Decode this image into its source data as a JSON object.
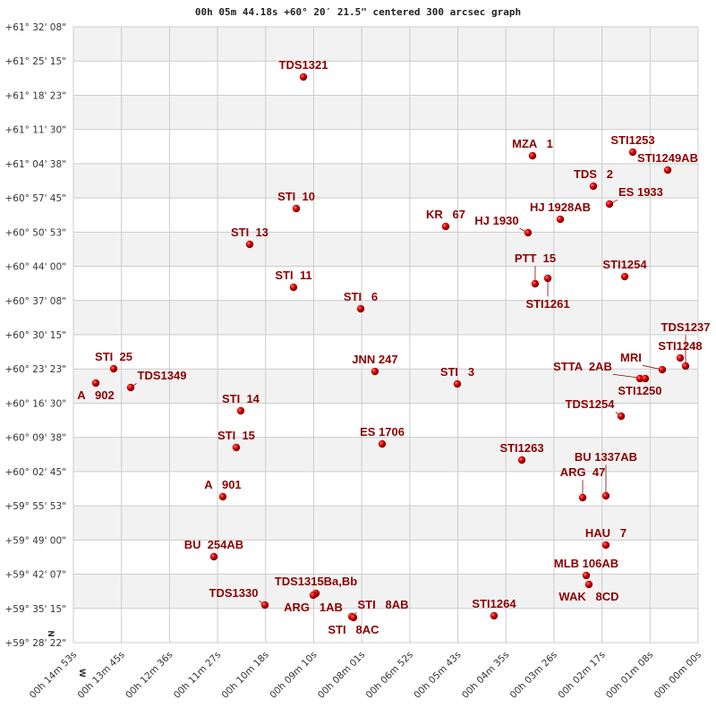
{
  "chart_data": {
    "type": "scatter",
    "title": "00h 05m 44.18s +60° 20′ 21.5\" centered 300 arcsec graph",
    "x_unit": "RA seconds (0h)",
    "y_unit": "Dec degrees",
    "xlim": [
      893,
      0
    ],
    "ylim": [
      59.47278,
      61.53556
    ],
    "grid": true,
    "compass": {
      "north": "N",
      "west": "W"
    },
    "x_ticks": [
      "00h 14m 53s",
      "00h 13m 45s",
      "00h 12m 36s",
      "00h 11m 27s",
      "00h 10m 18s",
      "00h 09m 10s",
      "00h 08m 01s",
      "00h 06m 52s",
      "00h 05m 43s",
      "00h 04m 35s",
      "00h 03m 26s",
      "00h 02m 17s",
      "00h 01m 08s",
      "00h 00m 00s"
    ],
    "y_ticks": [
      "+61° 32' 08\"",
      "+61° 25' 15\"",
      "+61° 18' 23\"",
      "+61° 11' 30\"",
      "+61° 04' 38\"",
      "+60° 57' 45\"",
      "+60° 50' 53\"",
      "+60° 44' 00\"",
      "+60° 37' 08\"",
      "+60° 30' 15\"",
      "+60° 23' 23\"",
      "+60° 16' 30\"",
      "+60° 09' 38\"",
      "+60° 02' 45\"",
      "+59° 55' 53\"",
      "+59° 49' 00\"",
      "+59° 42' 07\"",
      "+59° 35' 15\"",
      "+59° 28' 22\""
    ],
    "colors": {
      "marker": "#cc0000",
      "label": "#8b0000",
      "band": "#f2f2f2",
      "grid": "#cccccc"
    },
    "stars": [
      {
        "name": "TDS1321",
        "ra_s": 564.2,
        "dec": 61.3676
      },
      {
        "name": "MZA   1",
        "ra_s": 236.7,
        "dec": 61.1038
      },
      {
        "name": "STI1253",
        "ra_s": 93.4,
        "dec": 61.1158
      },
      {
        "name": "STI1249AB",
        "ra_s": 43.5,
        "dec": 61.0558
      },
      {
        "name": "TDS   2",
        "ra_s": 149.7,
        "dec": 61.0019
      },
      {
        "name": "ES 1933",
        "ra_s": 126.7,
        "dec": 60.9419
      },
      {
        "name": "HJ 1928AB",
        "ra_s": 197.0,
        "dec": 60.8909
      },
      {
        "name": "HJ 1930",
        "ra_s": 243.1,
        "dec": 60.846
      },
      {
        "name": "KR   67",
        "ra_s": 360.8,
        "dec": 60.8669
      },
      {
        "name": "STI  10",
        "ra_s": 574.4,
        "dec": 60.9269
      },
      {
        "name": "STI  13",
        "ra_s": 641.0,
        "dec": 60.807
      },
      {
        "name": "STI  11",
        "ra_s": 578.3,
        "dec": 60.6631
      },
      {
        "name": "STI   6",
        "ra_s": 482.3,
        "dec": 60.5911
      },
      {
        "name": "PTT  15",
        "ra_s": 232.9,
        "dec": 60.6751
      },
      {
        "name": "STI1261",
        "ra_s": 214.9,
        "dec": 60.6931
      },
      {
        "name": "STI1254",
        "ra_s": 104.9,
        "dec": 60.699
      },
      {
        "name": "STI1248",
        "ra_s": 25.6,
        "dec": 60.4262
      },
      {
        "name": "TDS1237",
        "ra_s": 17.9,
        "dec": 60.3992
      },
      {
        "name": "MRI",
        "ra_s": 51.2,
        "dec": 60.3872
      },
      {
        "name": "STI1250",
        "ra_s": 83.2,
        "dec": 60.3573
      },
      {
        "name": "STTA  2AB",
        "ra_s": 75.5,
        "dec": 60.3573
      },
      {
        "name": "JNN 247",
        "ra_s": 461.9,
        "dec": 60.3812
      },
      {
        "name": "STI   3",
        "ra_s": 344.2,
        "dec": 60.3393
      },
      {
        "name": "STI  25",
        "ra_s": 835.4,
        "dec": 60.3902
      },
      {
        "name": "A   902",
        "ra_s": 861.0,
        "dec": 60.3423
      },
      {
        "name": "TDS1349",
        "ra_s": 811.1,
        "dec": 60.3273
      },
      {
        "name": "STI  14",
        "ra_s": 653.8,
        "dec": 60.2493
      },
      {
        "name": "TDS1254",
        "ra_s": 110.0,
        "dec": 60.2313
      },
      {
        "name": "ES 1706",
        "ra_s": 451.6,
        "dec": 60.1384
      },
      {
        "name": "STI  15",
        "ra_s": 660.2,
        "dec": 60.1264
      },
      {
        "name": "STI1263",
        "ra_s": 252.0,
        "dec": 60.0844
      },
      {
        "name": "A   901",
        "ra_s": 679.4,
        "dec": 59.9615
      },
      {
        "name": "ARG  47",
        "ra_s": 165.0,
        "dec": 59.9585
      },
      {
        "name": "BU 1337AB",
        "ra_s": 131.8,
        "dec": 59.9645
      },
      {
        "name": "HAU   7",
        "ra_s": 131.8,
        "dec": 59.7996
      },
      {
        "name": "BU  254AB",
        "ra_s": 692.2,
        "dec": 59.7606
      },
      {
        "name": "MLB 106AB",
        "ra_s": 159.9,
        "dec": 59.6977
      },
      {
        "name": "WAK   8CD",
        "ra_s": 156.1,
        "dec": 59.6677
      },
      {
        "name": "TDS1315Ba,Bb",
        "ra_s": 546.3,
        "dec": 59.6377
      },
      {
        "name": "ARG   1AB",
        "ra_s": 550.1,
        "dec": 59.6317
      },
      {
        "name": "TDS1330",
        "ra_s": 619.2,
        "dec": 59.5987
      },
      {
        "name": "STI   8AB",
        "ra_s": 495.1,
        "dec": 59.5597
      },
      {
        "name": "STI   8AC",
        "ra_s": 492.6,
        "dec": 59.5567
      },
      {
        "name": "STI1264",
        "ra_s": 291.7,
        "dec": 59.5627
      }
    ]
  }
}
